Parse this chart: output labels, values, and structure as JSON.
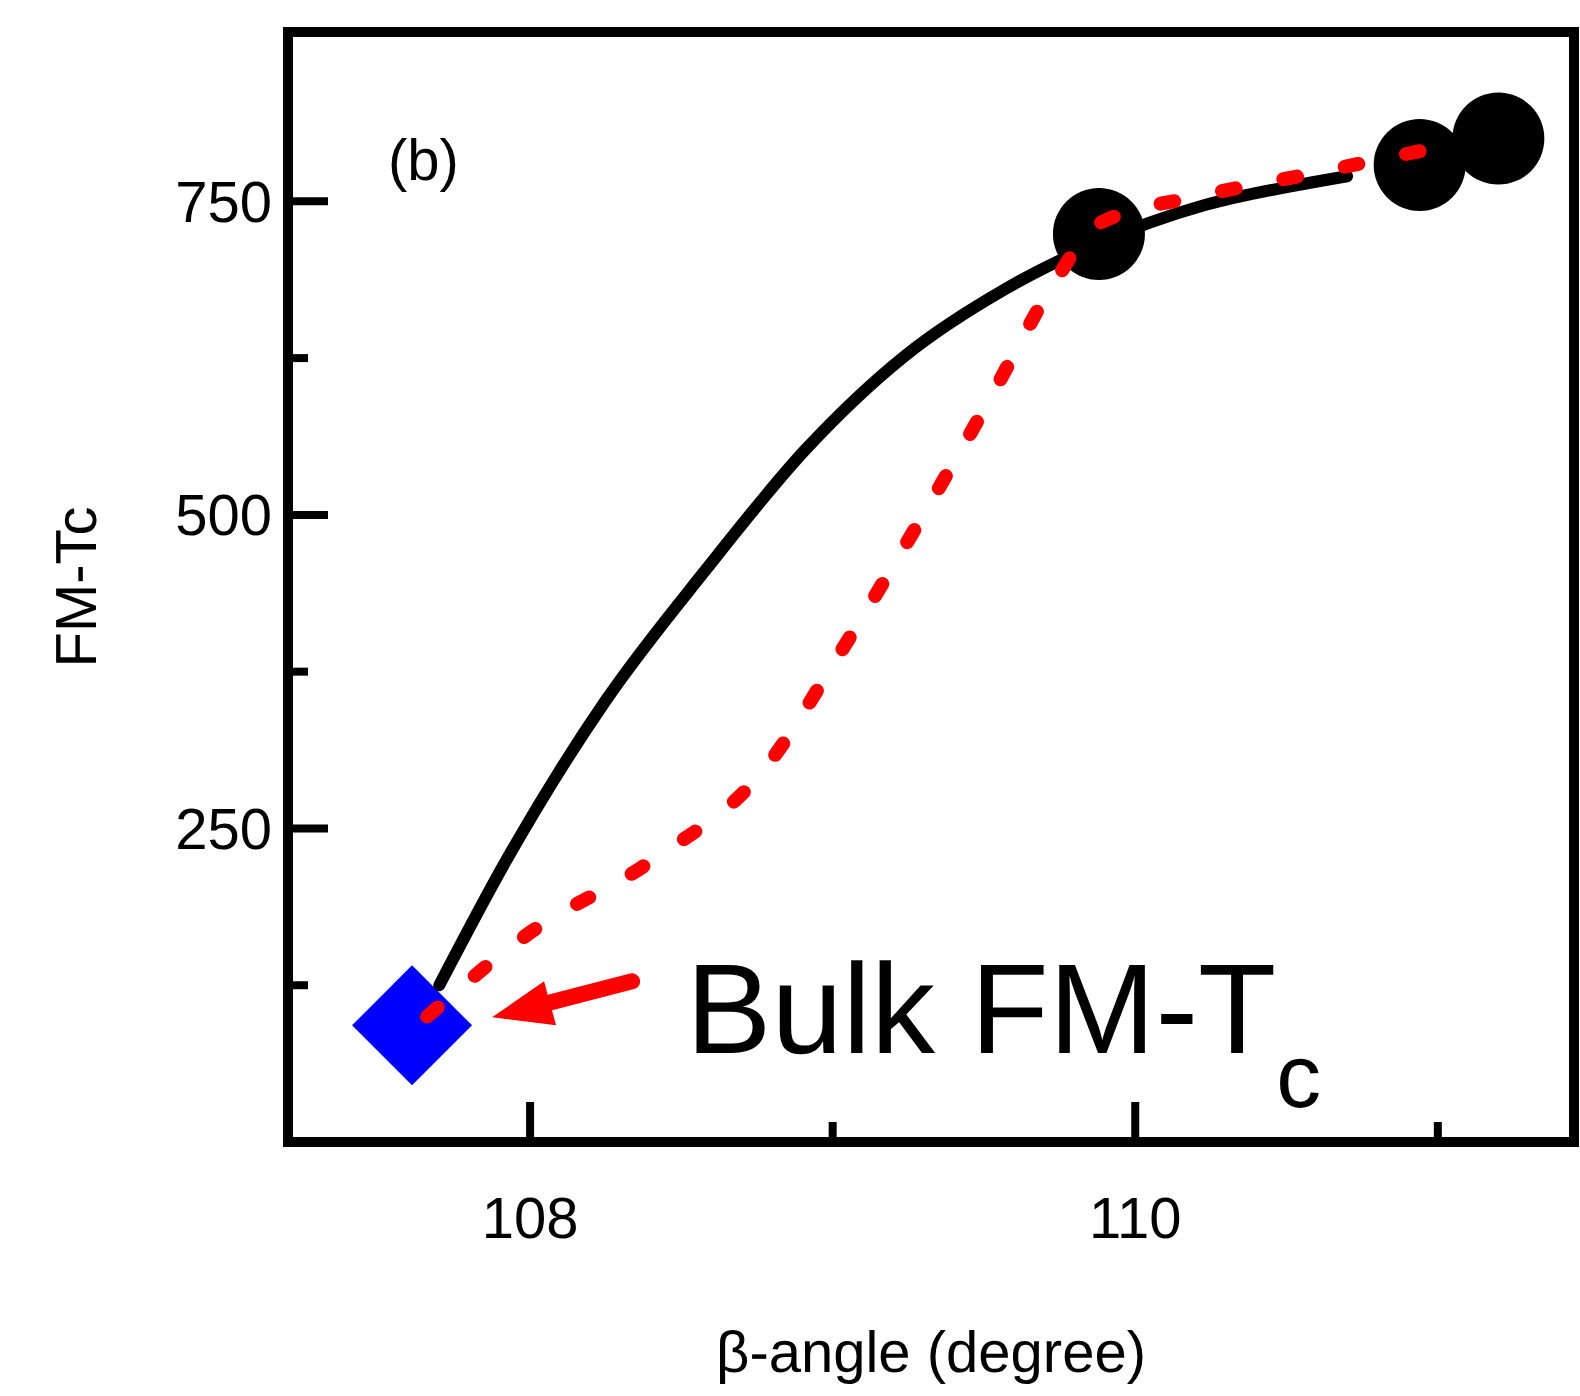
{
  "chart_data": {
    "type": "scatter",
    "xlabel": "β-angle (degree)",
    "ylabel": "FM-Tc",
    "xlim": [
      107.2,
      111.45
    ],
    "ylim": [
      0,
      885
    ],
    "xticks": [
      108,
      {
        "value": 109,
        "label": null
      },
      110,
      {
        "value": 111,
        "label": null
      }
    ],
    "yticks": [
      {
        "value": 125,
        "label": null
      },
      250,
      {
        "value": 375,
        "label": null
      },
      500,
      {
        "value": 625,
        "label": null
      },
      750
    ],
    "grid": false,
    "annotations": [
      "(b)",
      {
        "text": "Bulk FM-T$_{c}$",
        "x": 107.61,
        "y": 93
      }
    ],
    "series": [
      {
        "color": "#0000ff",
        "marker": "diamond",
        "x": [
          107.61
        ],
        "values": [
          93
        ]
      },
      {
        "type": "line",
        "color": "#000000",
        "line_style": "solid",
        "marker": "none",
        "x": [
          107.7,
          107.92,
          108.25,
          108.58,
          108.91,
          109.24,
          109.57,
          109.87,
          110.23,
          110.56,
          110.7
        ],
        "values": [
          125,
          224,
          352,
          456,
          552,
          627,
          680,
          716,
          747,
          764,
          770
        ]
      },
      {
        "color": "#000000",
        "marker": "circle",
        "x": [
          109.88,
          110.94,
          111.2
        ],
        "values": [
          724,
          779,
          800
        ]
      },
      {
        "type": "line",
        "color": "#ff0000",
        "line_style": "dashed",
        "marker": "none",
        "x": [
          107.66,
          108.0,
          108.4,
          108.77,
          109.03,
          109.27,
          109.5,
          109.74,
          109.87,
          110.23,
          110.56,
          110.94
        ],
        "values": [
          100,
          167,
          224,
          296,
          392,
          488,
          584,
          688,
          731,
          755,
          771,
          790
        ]
      }
    ]
  }
}
